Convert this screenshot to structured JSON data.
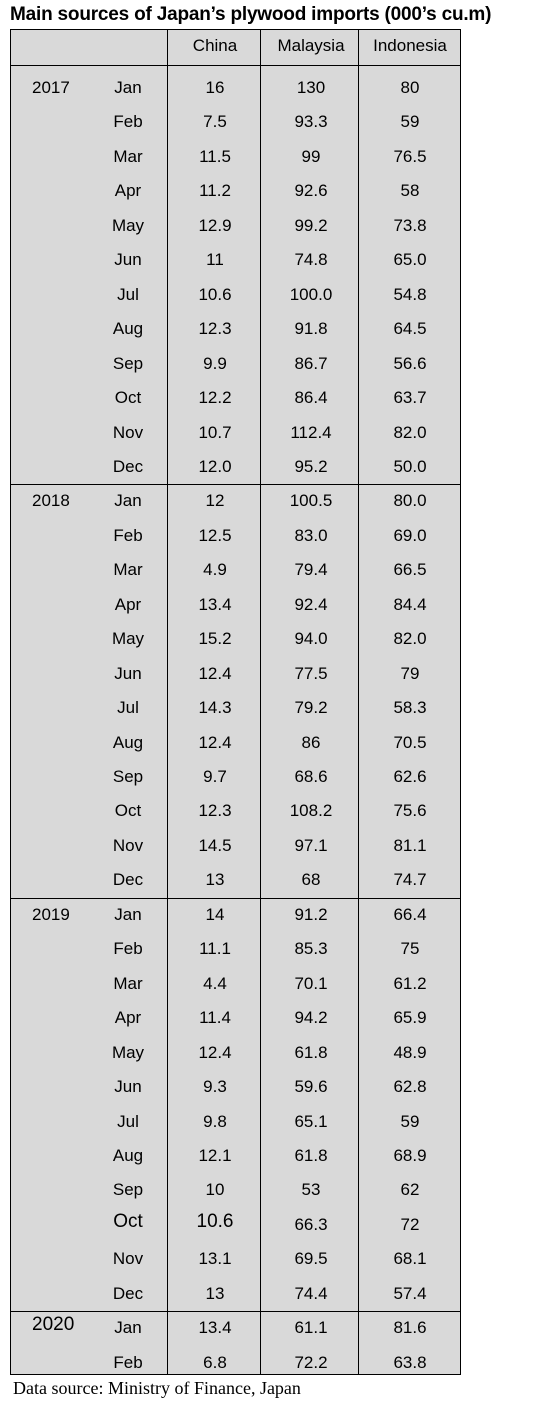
{
  "title": "Main sources of Japan’s plywood imports (000’s cu.m)",
  "columns": [
    "China",
    "Malaysia",
    "Indonesia"
  ],
  "groups": [
    {
      "year": "2017",
      "rows": [
        {
          "month": "Jan",
          "china": "16",
          "malaysia": "130",
          "indonesia": "80"
        },
        {
          "month": "Feb",
          "china": "7.5",
          "malaysia": "93.3",
          "indonesia": "59"
        },
        {
          "month": "Mar",
          "china": "11.5",
          "malaysia": "99",
          "indonesia": "76.5"
        },
        {
          "month": "Apr",
          "china": "11.2",
          "malaysia": "92.6",
          "indonesia": "58"
        },
        {
          "month": "May",
          "china": "12.9",
          "malaysia": "99.2",
          "indonesia": "73.8"
        },
        {
          "month": "Jun",
          "china": "11",
          "malaysia": "74.8",
          "indonesia": "65.0"
        },
        {
          "month": "Jul",
          "china": "10.6",
          "malaysia": "100.0",
          "indonesia": "54.8"
        },
        {
          "month": "Aug",
          "china": "12.3",
          "malaysia": "91.8",
          "indonesia": "64.5"
        },
        {
          "month": "Sep",
          "china": "9.9",
          "malaysia": "86.7",
          "indonesia": "56.6"
        },
        {
          "month": "Oct",
          "china": "12.2",
          "malaysia": "86.4",
          "indonesia": "63.7"
        },
        {
          "month": "Nov",
          "china": "10.7",
          "malaysia": "112.4",
          "indonesia": "82.0"
        },
        {
          "month": "Dec",
          "china": "12.0",
          "malaysia": "95.2",
          "indonesia": "50.0"
        }
      ]
    },
    {
      "year": "2018",
      "rows": [
        {
          "month": "Jan",
          "china": "12",
          "malaysia": "100.5",
          "indonesia": "80.0"
        },
        {
          "month": "Feb",
          "china": "12.5",
          "malaysia": "83.0",
          "indonesia": "69.0"
        },
        {
          "month": "Mar",
          "china": "4.9",
          "malaysia": "79.4",
          "indonesia": "66.5"
        },
        {
          "month": "Apr",
          "china": "13.4",
          "malaysia": "92.4",
          "indonesia": "84.4"
        },
        {
          "month": "May",
          "china": "15.2",
          "malaysia": "94.0",
          "indonesia": "82.0"
        },
        {
          "month": "Jun",
          "china": "12.4",
          "malaysia": "77.5",
          "indonesia": "79"
        },
        {
          "month": "Jul",
          "china": "14.3",
          "malaysia": "79.2",
          "indonesia": "58.3"
        },
        {
          "month": "Aug",
          "china": "12.4",
          "malaysia": "86",
          "indonesia": "70.5"
        },
        {
          "month": "Sep",
          "china": "9.7",
          "malaysia": "68.6",
          "indonesia": "62.6"
        },
        {
          "month": "Oct",
          "china": "12.3",
          "malaysia": "108.2",
          "indonesia": "75.6"
        },
        {
          "month": "Nov",
          "china": "14.5",
          "malaysia": "97.1",
          "indonesia": "81.1"
        },
        {
          "month": "Dec",
          "china": "13",
          "malaysia": "68",
          "indonesia": "74.7"
        }
      ]
    },
    {
      "year": "2019",
      "rows": [
        {
          "month": "Jan",
          "china": "14",
          "malaysia": "91.2",
          "indonesia": "66.4"
        },
        {
          "month": "Feb",
          "china": "11.1",
          "malaysia": "85.3",
          "indonesia": "75"
        },
        {
          "month": "Mar",
          "china": "4.4",
          "malaysia": "70.1",
          "indonesia": "61.2"
        },
        {
          "month": "Apr",
          "china": "11.4",
          "malaysia": "94.2",
          "indonesia": "65.9"
        },
        {
          "month": "May",
          "china": "12.4",
          "malaysia": "61.8",
          "indonesia": "48.9"
        },
        {
          "month": "Jun",
          "china": "9.3",
          "malaysia": "59.6",
          "indonesia": "62.8"
        },
        {
          "month": "Jul",
          "china": "9.8",
          "malaysia": "65.1",
          "indonesia": "59"
        },
        {
          "month": "Aug",
          "china": "12.1",
          "malaysia": "61.8",
          "indonesia": "68.9"
        },
        {
          "month": "Sep",
          "china": "10",
          "malaysia": "53",
          "indonesia": "62"
        },
        {
          "month": "Oct",
          "china": "10.6",
          "malaysia": "66.3",
          "indonesia": "72"
        },
        {
          "month": "Nov",
          "china": "13.1",
          "malaysia": "69.5",
          "indonesia": "68.1"
        },
        {
          "month": "Dec",
          "china": "13",
          "malaysia": "74.4",
          "indonesia": "57.4"
        }
      ]
    },
    {
      "year": "2020",
      "rows": [
        {
          "month": "Jan",
          "china": "13.4",
          "malaysia": "61.1",
          "indonesia": "81.6"
        },
        {
          "month": "Feb",
          "china": "6.8",
          "malaysia": "72.2",
          "indonesia": "63.8"
        }
      ]
    }
  ],
  "source": "Data source: Ministry of Finance, Japan"
}
